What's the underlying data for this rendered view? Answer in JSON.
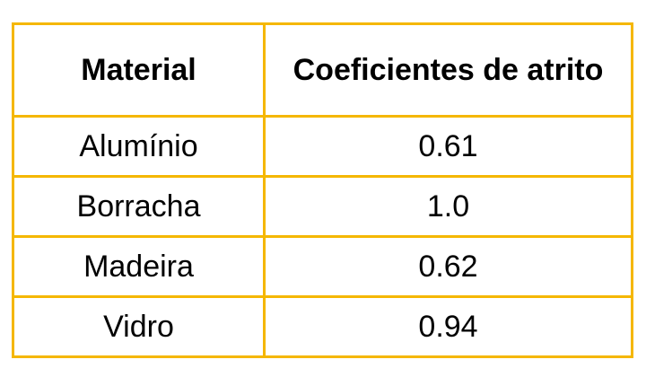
{
  "table": {
    "headers": [
      "Material",
      "Coeficientes de atrito"
    ],
    "rows": [
      [
        "Alumínio",
        "0.61"
      ],
      [
        "Borracha",
        "1.0"
      ],
      [
        "Madeira",
        "0.62"
      ],
      [
        "Vidro",
        "0.94"
      ]
    ]
  },
  "colors": {
    "border": "#f5b700",
    "text": "#000000",
    "background": "#ffffff"
  }
}
